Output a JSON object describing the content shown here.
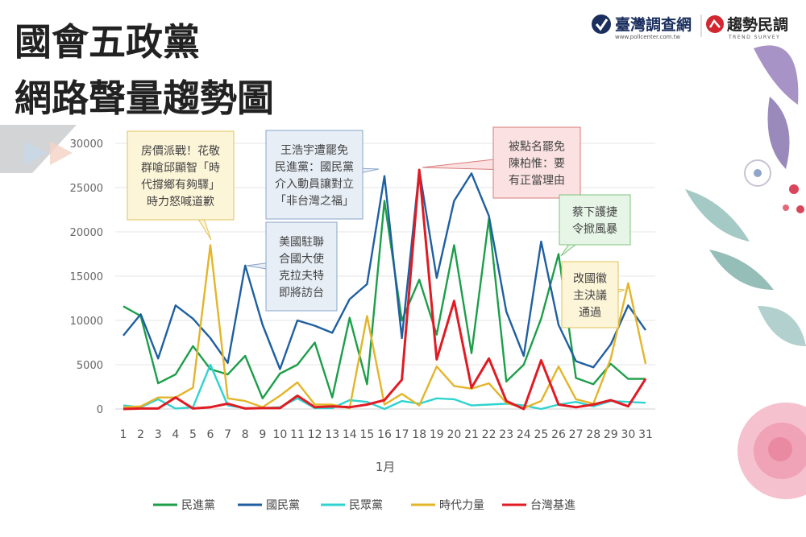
{
  "title": {
    "line1": "國會五政黨",
    "line2": "網路聲量趨勢圖"
  },
  "logos": {
    "left_name": "臺灣調查網",
    "left_url": "www.pollcenter.com.tw",
    "right_name": "趨勢民調",
    "right_sub": "TREND SURVEY"
  },
  "colors": {
    "dpp": "#1d9e4a",
    "kmt": "#1f5fa0",
    "tpp": "#2fd3d0",
    "npp": "#e3b52a",
    "tsp": "#e01b24"
  },
  "annotations": [
    {
      "id": "housing",
      "lines": [
        "房價派戰！花敬",
        "群嗆邱顯智「時",
        "代撐鄉有夠驛」",
        "時力怒喊道歉"
      ],
      "fill": "#fdf5d8",
      "border": "#e0c25a"
    },
    {
      "id": "us-envoy",
      "lines": [
        "美國駐聯",
        "合國大使",
        "克拉夫特",
        "即將訪台"
      ],
      "fill": "#e7eef6",
      "border": "#8aa5c8"
    },
    {
      "id": "wang",
      "lines": [
        "王浩宇遭罷免",
        "民進黨：國民黨",
        "介入動員讓對立",
        "「非台灣之福」"
      ],
      "fill": "#e7eef6",
      "border": "#8aa5c8"
    },
    {
      "id": "chen",
      "lines": [
        "被點名罷免",
        "陳柏惟：要",
        "有正當理由"
      ],
      "fill": "#fbe1e1",
      "border": "#d77b7b"
    },
    {
      "id": "tsai",
      "lines": [
        "蔡下護捷",
        "令掀風暴"
      ],
      "fill": "#e6f5e6",
      "border": "#7dc47d"
    },
    {
      "id": "referendum",
      "lines": [
        "改國徽",
        "主決議",
        "通過"
      ],
      "fill": "#fdf5d8",
      "border": "#e0c25a"
    }
  ],
  "chart_data": {
    "type": "line",
    "x": [
      1,
      2,
      3,
      4,
      5,
      6,
      7,
      8,
      9,
      10,
      11,
      12,
      13,
      14,
      15,
      16,
      17,
      18,
      19,
      20,
      21,
      22,
      23,
      24,
      25,
      26,
      27,
      28,
      29,
      30,
      31
    ],
    "xlabel": "1月",
    "ylabel": "",
    "ylim": [
      0,
      30000
    ],
    "yticks": [
      0,
      5000,
      10000,
      15000,
      20000,
      25000,
      30000
    ],
    "grid": true,
    "legend_position": "bottom",
    "series": [
      {
        "name": "民進黨",
        "color": "#1d9e4a",
        "values": [
          11600,
          10500,
          2900,
          3900,
          7100,
          4500,
          3900,
          6000,
          1200,
          4000,
          5000,
          7500,
          1300,
          10300,
          2800,
          23500,
          10000,
          14600,
          8400,
          18500,
          6300,
          21500,
          3100,
          5000,
          10200,
          17500,
          3500,
          2800,
          5100,
          3400,
          3400
        ]
      },
      {
        "name": "國民黨",
        "color": "#1f5fa0",
        "values": [
          8300,
          10700,
          5700,
          11700,
          10200,
          8000,
          5200,
          16200,
          9500,
          4500,
          10000,
          9400,
          8600,
          12400,
          14100,
          26300,
          8000,
          27000,
          14800,
          23500,
          26600,
          21800,
          11000,
          6000,
          18900,
          9500,
          5400,
          4700,
          7300,
          11700,
          8900
        ]
      },
      {
        "name": "民眾黨",
        "color": "#2fd3d0",
        "values": [
          400,
          200,
          1100,
          50,
          200,
          5000,
          400,
          100,
          100,
          200,
          1200,
          100,
          100,
          1000,
          800,
          0,
          900,
          600,
          1200,
          1100,
          400,
          500,
          600,
          400,
          0,
          500,
          800,
          300,
          900,
          800,
          700
        ]
      },
      {
        "name": "時代力量",
        "color": "#e3b52a",
        "values": [
          200,
          300,
          1300,
          1300,
          2400,
          18500,
          1200,
          900,
          200,
          1500,
          3000,
          500,
          500,
          100,
          10500,
          500,
          1700,
          400,
          4800,
          2600,
          2300,
          2900,
          700,
          100,
          900,
          4800,
          1100,
          600,
          5700,
          14200,
          5100
        ]
      },
      {
        "name": "台灣基進",
        "color": "#e01b24",
        "values": [
          0,
          50,
          50,
          1300,
          50,
          200,
          600,
          50,
          100,
          100,
          1500,
          200,
          300,
          200,
          500,
          1000,
          3300,
          27000,
          5600,
          12200,
          2400,
          5700,
          900,
          0,
          5500,
          500,
          200,
          500,
          1000,
          300,
          3400
        ]
      }
    ]
  }
}
